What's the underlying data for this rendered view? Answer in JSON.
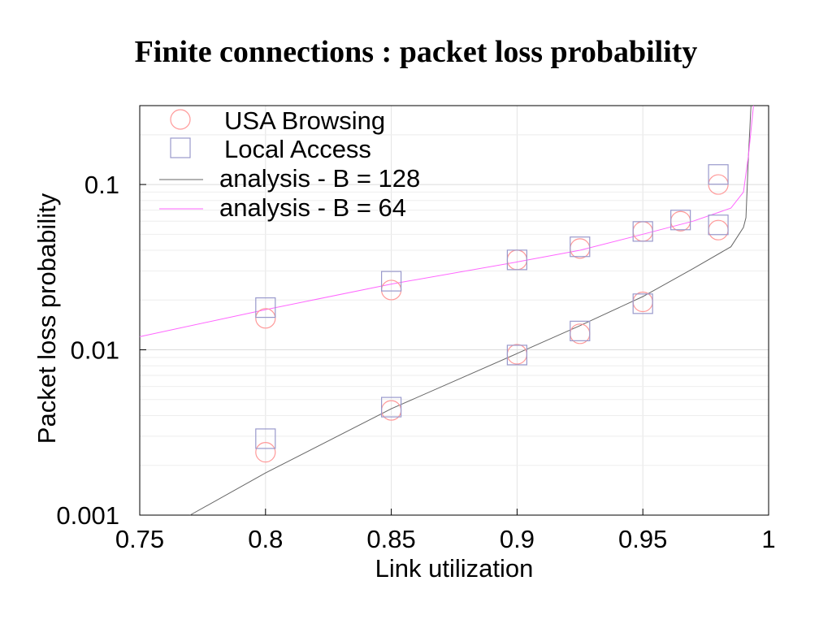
{
  "chart_data": {
    "type": "scatter",
    "title": "Finite connections : packet loss probability",
    "xlabel": "Link utilization",
    "ylabel": "Packet loss probability",
    "xlim": [
      0.75,
      1
    ],
    "ylim": [
      0.001,
      0.3
    ],
    "yscale": "log",
    "grid": true,
    "legend_position": "top-left",
    "x_ticks": [
      "0.75",
      "0.8",
      "0.85",
      "0.9",
      "0.95",
      "1"
    ],
    "y_ticks": [
      "0.001",
      "0.01",
      "0.1"
    ],
    "series": [
      {
        "name": "USA Browsing",
        "kind": "marker",
        "marker": "circle",
        "color": "#ff9999",
        "points": [
          {
            "x": 0.8,
            "y": 0.0155
          },
          {
            "x": 0.85,
            "y": 0.023
          },
          {
            "x": 0.9,
            "y": 0.035
          },
          {
            "x": 0.925,
            "y": 0.041
          },
          {
            "x": 0.95,
            "y": 0.052
          },
          {
            "x": 0.965,
            "y": 0.06
          },
          {
            "x": 0.98,
            "y": 0.1
          },
          {
            "x": 0.98,
            "y": 0.053
          },
          {
            "x": 0.8,
            "y": 0.0024
          },
          {
            "x": 0.85,
            "y": 0.0043
          },
          {
            "x": 0.9,
            "y": 0.0094
          },
          {
            "x": 0.925,
            "y": 0.0125
          },
          {
            "x": 0.95,
            "y": 0.0195
          }
        ]
      },
      {
        "name": "Local Access",
        "kind": "marker",
        "marker": "square",
        "color": "#9999cc",
        "points": [
          {
            "x": 0.8,
            "y": 0.018
          },
          {
            "x": 0.85,
            "y": 0.026
          },
          {
            "x": 0.9,
            "y": 0.035
          },
          {
            "x": 0.925,
            "y": 0.042
          },
          {
            "x": 0.95,
            "y": 0.052
          },
          {
            "x": 0.965,
            "y": 0.061
          },
          {
            "x": 0.98,
            "y": 0.115
          },
          {
            "x": 0.98,
            "y": 0.057
          },
          {
            "x": 0.8,
            "y": 0.0029
          },
          {
            "x": 0.85,
            "y": 0.0045
          },
          {
            "x": 0.9,
            "y": 0.0093
          },
          {
            "x": 0.925,
            "y": 0.013
          },
          {
            "x": 0.95,
            "y": 0.019
          }
        ]
      },
      {
        "name": "analysis - B = 128",
        "kind": "line",
        "color": "#666666",
        "points": [
          {
            "x": 0.77,
            "y": 0.001
          },
          {
            "x": 0.8,
            "y": 0.0018
          },
          {
            "x": 0.85,
            "y": 0.0044
          },
          {
            "x": 0.9,
            "y": 0.0095
          },
          {
            "x": 0.925,
            "y": 0.014
          },
          {
            "x": 0.95,
            "y": 0.021
          },
          {
            "x": 0.97,
            "y": 0.031
          },
          {
            "x": 0.985,
            "y": 0.042
          },
          {
            "x": 0.99,
            "y": 0.055
          },
          {
            "x": 0.991,
            "y": 0.063
          },
          {
            "x": 0.992,
            "y": 0.15
          },
          {
            "x": 0.993,
            "y": 0.3
          }
        ]
      },
      {
        "name": "analysis - B = 64",
        "kind": "line",
        "color": "#ff66ff",
        "points": [
          {
            "x": 0.75,
            "y": 0.012
          },
          {
            "x": 0.8,
            "y": 0.0175
          },
          {
            "x": 0.85,
            "y": 0.025
          },
          {
            "x": 0.9,
            "y": 0.034
          },
          {
            "x": 0.925,
            "y": 0.04
          },
          {
            "x": 0.95,
            "y": 0.05
          },
          {
            "x": 0.97,
            "y": 0.06
          },
          {
            "x": 0.985,
            "y": 0.072
          },
          {
            "x": 0.99,
            "y": 0.09
          },
          {
            "x": 0.992,
            "y": 0.15
          },
          {
            "x": 0.994,
            "y": 0.3
          }
        ]
      }
    ]
  }
}
